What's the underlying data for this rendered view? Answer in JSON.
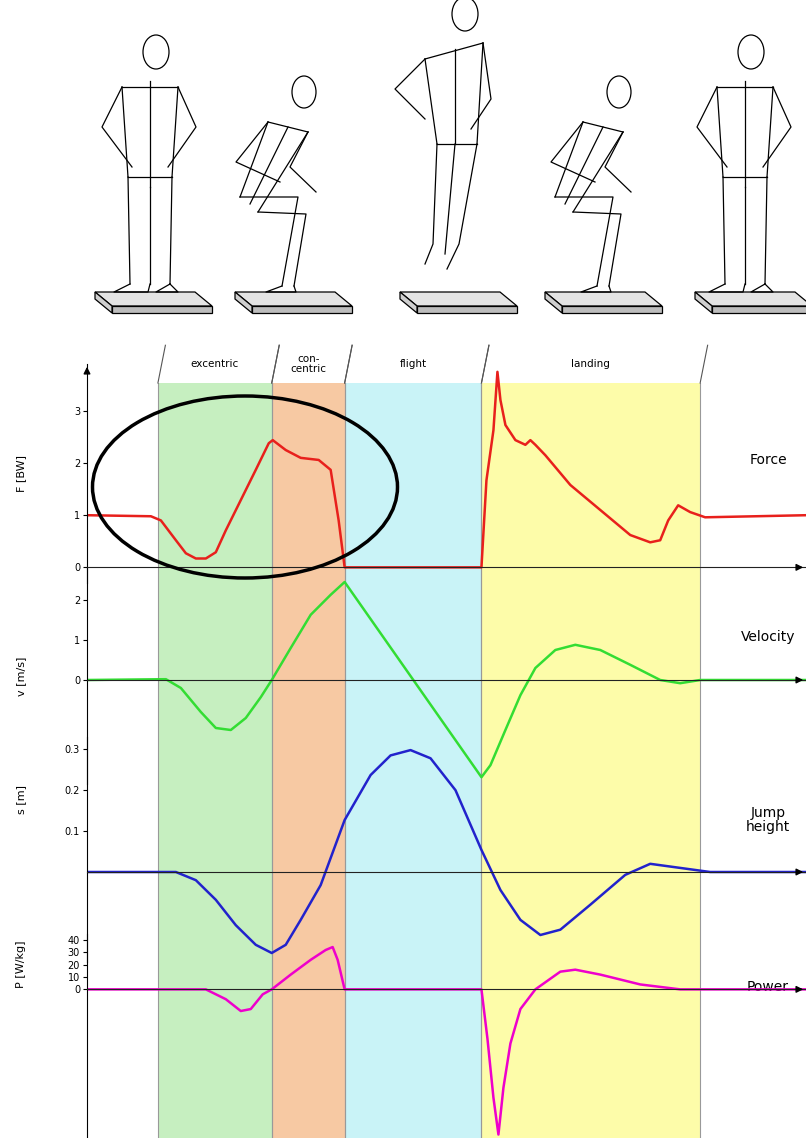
{
  "phases": [
    {
      "label": "excentric",
      "start": 0.284,
      "end": 0.74,
      "color": "#c6efc0"
    },
    {
      "label": "con-\ncentric",
      "start": 0.74,
      "end": 1.032,
      "color": "#f7c9a3"
    },
    {
      "label": "flight",
      "start": 1.032,
      "end": 1.58,
      "color": "#c9f3f7"
    },
    {
      "label": "landing",
      "start": 1.58,
      "end": 2.456,
      "color": "#fdfca9"
    }
  ],
  "chart_data": [
    {
      "type": "line",
      "y_label": "F [BW]",
      "xlim": [
        0,
        2.88
      ],
      "ylim": [
        -0.3,
        3.9
      ],
      "yticks": [
        0,
        1,
        2,
        3
      ],
      "tick_labels": "y",
      "x": [
        0,
        0.256,
        0.296,
        0.356,
        0.396,
        0.436,
        0.476,
        0.516,
        0.556,
        0.616,
        0.676,
        0.728,
        0.744,
        0.796,
        0.856,
        0.928,
        0.976,
        1.008,
        1.032,
        1.58,
        1.6,
        1.628,
        1.644,
        1.656,
        1.676,
        1.716,
        1.756,
        1.776,
        1.796,
        1.836,
        1.936,
        2.056,
        2.176,
        2.256,
        2.296,
        2.328,
        2.368,
        2.416,
        2.476,
        2.88
      ],
      "series": [
        {
          "name": "Force",
          "color": "#e8201c",
          "values": [
            1.0,
            0.98,
            0.9,
            0.52,
            0.27,
            0.17,
            0.17,
            0.29,
            0.71,
            1.29,
            1.87,
            2.38,
            2.44,
            2.25,
            2.1,
            2.06,
            1.87,
            0.9,
            0,
            0,
            1.67,
            2.63,
            3.75,
            3.21,
            2.73,
            2.44,
            2.35,
            2.44,
            2.35,
            2.15,
            1.58,
            1.1,
            0.62,
            0.48,
            0.52,
            0.9,
            1.19,
            1.06,
            0.96,
            1.0
          ]
        }
      ]
    },
    {
      "type": "line",
      "y_label": "v [m/s]",
      "xlim": [
        0,
        2.88
      ],
      "ylim": [
        -2.6,
        2.8
      ],
      "yticks": [
        0,
        1,
        2
      ],
      "tick_labels": "y",
      "x": [
        0,
        0.316,
        0.376,
        0.456,
        0.516,
        0.576,
        0.636,
        0.696,
        0.74,
        0.816,
        0.896,
        0.976,
        1.032,
        1.58,
        1.616,
        1.676,
        1.736,
        1.796,
        1.876,
        1.956,
        2.056,
        2.176,
        2.296,
        2.376,
        2.456,
        2.88
      ],
      "series": [
        {
          "name": "Velocity",
          "color": "#33dd33",
          "values": [
            0,
            0.02,
            -0.2,
            -0.8,
            -1.2,
            -1.25,
            -0.95,
            -0.43,
            0,
            0.8,
            1.63,
            2.13,
            2.45,
            -2.43,
            -2.13,
            -1.25,
            -0.38,
            0.3,
            0.75,
            0.88,
            0.75,
            0.38,
            0,
            -0.08,
            0,
            0
          ]
        }
      ]
    },
    {
      "type": "line",
      "y_label": "s [m]",
      "xlim": [
        0,
        2.88
      ],
      "ylim": [
        -0.22,
        0.33
      ],
      "yticks": [
        0.1,
        0.2,
        0.3
      ],
      "tick_labels": "y",
      "x": [
        0,
        0.356,
        0.436,
        0.516,
        0.596,
        0.676,
        0.74,
        0.796,
        0.856,
        0.936,
        1.032,
        1.136,
        1.216,
        1.296,
        1.376,
        1.476,
        1.58,
        1.656,
        1.736,
        1.816,
        1.896,
        2.016,
        2.156,
        2.256,
        2.376,
        2.496,
        2.88
      ],
      "series": [
        {
          "name": "Jump\nheight",
          "color": "#2222cc",
          "values": [
            0,
            0,
            -0.02,
            -0.068,
            -0.13,
            -0.178,
            -0.198,
            -0.178,
            -0.117,
            -0.032,
            0.127,
            0.237,
            0.285,
            0.298,
            0.278,
            0.2,
            0.054,
            -0.044,
            -0.117,
            -0.154,
            -0.141,
            -0.08,
            -0.007,
            0.02,
            0.01,
            0,
            0
          ]
        }
      ]
    },
    {
      "type": "line",
      "y_label": "P [W/kg]",
      "xlim": [
        0,
        2.88
      ],
      "ylim": [
        -120,
        45
      ],
      "yticks": [
        0,
        10,
        20,
        30,
        40
      ],
      "tick_labels": "y",
      "x": [
        0,
        0.476,
        0.556,
        0.616,
        0.656,
        0.704,
        0.74,
        0.816,
        0.896,
        0.956,
        0.984,
        1.004,
        1.032,
        1.58,
        1.604,
        1.628,
        1.648,
        1.668,
        1.696,
        1.736,
        1.796,
        1.896,
        1.956,
        2.056,
        2.216,
        2.376,
        2.88
      ],
      "series": [
        {
          "name": "Power",
          "color": "#ee00cc",
          "values": [
            0,
            0,
            -8,
            -17.6,
            -16,
            -4,
            0,
            12,
            24,
            32,
            34.4,
            24,
            0,
            0,
            -40,
            -88,
            -118,
            -80,
            -44,
            -16,
            0,
            14.4,
            16,
            12,
            4,
            0,
            0
          ]
        }
      ]
    }
  ]
}
